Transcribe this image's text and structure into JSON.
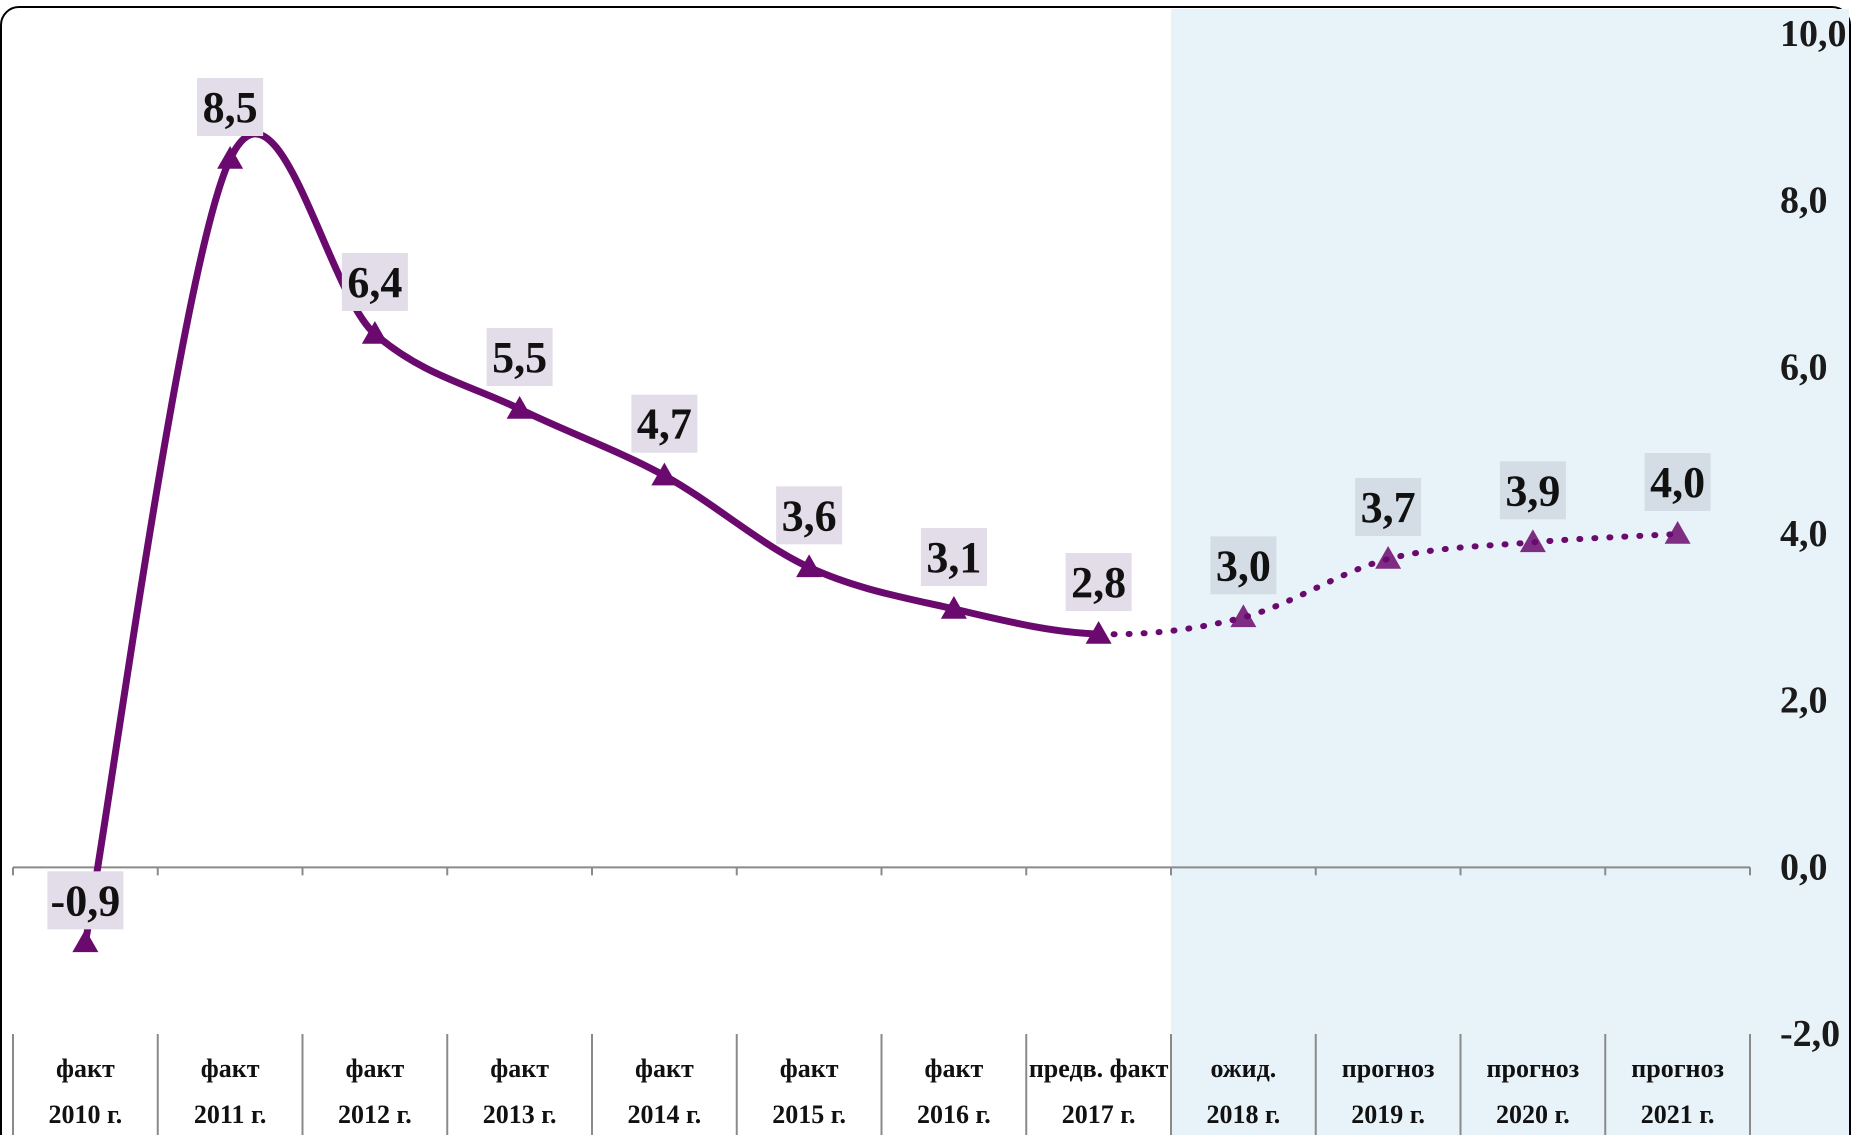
{
  "colors": {
    "series": "#6a0a6e",
    "forecast_background": "#e8f3f9",
    "label_box": "#e3dce9",
    "label_box_forecast": "#d4dde6"
  },
  "chart_data": {
    "type": "line",
    "title": "",
    "xlabel": "",
    "ylabel": "",
    "categories": [
      [
        "факт",
        "2010 г."
      ],
      [
        "факт",
        "2011 г."
      ],
      [
        "факт",
        "2012 г."
      ],
      [
        "факт",
        "2013 г."
      ],
      [
        "факт",
        "2014 г."
      ],
      [
        "факт",
        "2015 г."
      ],
      [
        "факт",
        "2016 г."
      ],
      [
        "предв. факт",
        "2017 г."
      ],
      [
        "ожид.",
        "2018 г."
      ],
      [
        "прогноз",
        "2019 г."
      ],
      [
        "прогноз",
        "2020 г."
      ],
      [
        "прогноз",
        "2021 г."
      ]
    ],
    "series": [
      {
        "values": [
          -0.9,
          8.5,
          6.4,
          5.5,
          4.7,
          3.6,
          3.1,
          2.8,
          3.0,
          3.7,
          3.9,
          4.0
        ],
        "data_labels": [
          "-0,9",
          "8,5",
          "6,4",
          "5,5",
          "4,7",
          "3,6",
          "3,1",
          "2,8",
          "3,0",
          "3,7",
          "3,9",
          "4,0"
        ],
        "solid_through_index": 7,
        "marker": "triangle",
        "smooth": true
      }
    ],
    "forecast_from_index": 8,
    "ylim": [
      -2.0,
      10.0
    ],
    "y_ticks": [
      "-2,0",
      "0,0",
      "2,0",
      "4,0",
      "6,0",
      "8,0",
      "10,0"
    ],
    "y_axis_position": "right",
    "grid": false,
    "legend": "none"
  }
}
